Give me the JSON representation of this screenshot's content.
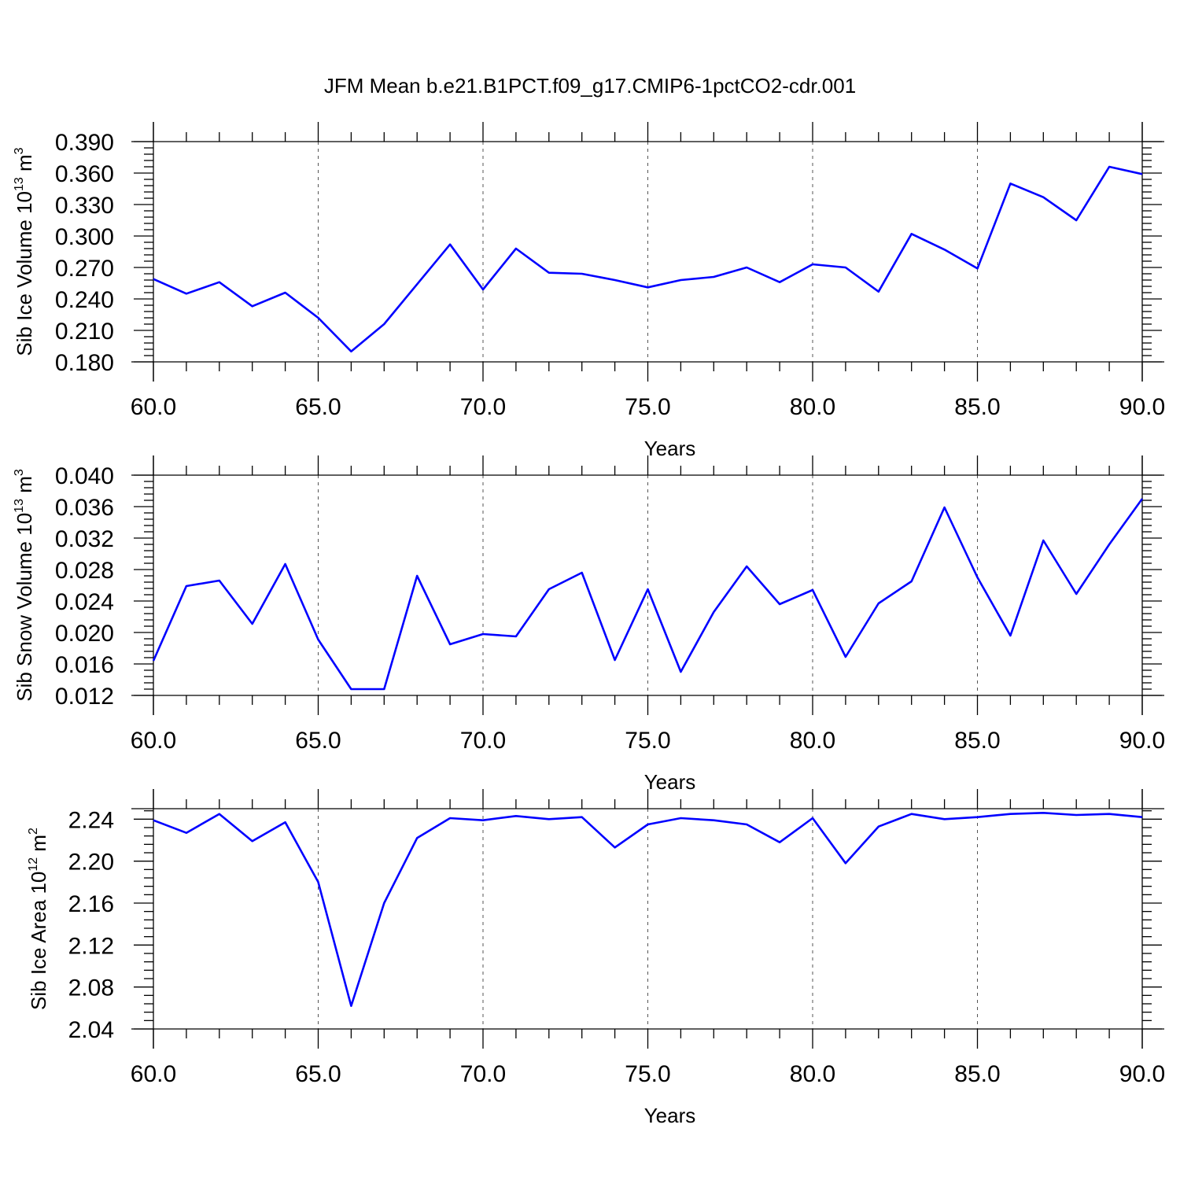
{
  "figure_title": "JFM Mean b.e21.B1PCT.f09_g17.CMIP6-1pctCO2-cdr.001",
  "colors": {
    "series": "#0000ff",
    "axis": "#000000",
    "grid": "#555555"
  },
  "chart_data": [
    {
      "type": "line",
      "xlabel": "Years",
      "ylabel": {
        "text": "Sib Ice Volume 10",
        "exponent": "13",
        "unit": " m",
        "unit_exponent": "3"
      },
      "xlim": [
        60,
        90
      ],
      "ylim": [
        0.18,
        0.39
      ],
      "x_tick_labels": [
        "60.0",
        "65.0",
        "70.0",
        "75.0",
        "80.0",
        "85.0",
        "90.0"
      ],
      "y_tick_labels": [
        "0.180",
        "0.210",
        "0.240",
        "0.270",
        "0.300",
        "0.330",
        "0.360",
        "0.390"
      ],
      "grid": "vertical dashed at major x ticks",
      "x": [
        60,
        61,
        62,
        63,
        64,
        65,
        66,
        67,
        68,
        69,
        70,
        71,
        72,
        73,
        74,
        75,
        76,
        77,
        78,
        79,
        80,
        81,
        82,
        83,
        84,
        85,
        86,
        87,
        88,
        89,
        90
      ],
      "values": [
        0.259,
        0.245,
        0.256,
        0.233,
        0.246,
        0.222,
        0.19,
        0.216,
        0.254,
        0.292,
        0.249,
        0.288,
        0.265,
        0.264,
        0.258,
        0.251,
        0.258,
        0.261,
        0.27,
        0.256,
        0.273,
        0.27,
        0.247,
        0.302,
        0.287,
        0.269,
        0.35,
        0.337,
        0.315,
        0.366,
        0.359
      ]
    },
    {
      "type": "line",
      "xlabel": "Years",
      "ylabel": {
        "text": "Sib Snow Volume 10",
        "exponent": "13",
        "unit": " m",
        "unit_exponent": "3"
      },
      "xlim": [
        60,
        90
      ],
      "ylim": [
        0.012,
        0.04
      ],
      "x_tick_labels": [
        "60.0",
        "65.0",
        "70.0",
        "75.0",
        "80.0",
        "85.0",
        "90.0"
      ],
      "y_tick_labels": [
        "0.012",
        "0.016",
        "0.020",
        "0.024",
        "0.028",
        "0.032",
        "0.036",
        "0.040"
      ],
      "grid": "vertical dashed at major x ticks",
      "x": [
        60,
        61,
        62,
        63,
        64,
        65,
        66,
        67,
        68,
        69,
        70,
        71,
        72,
        73,
        74,
        75,
        76,
        77,
        78,
        79,
        80,
        81,
        82,
        83,
        84,
        85,
        86,
        87,
        88,
        89,
        90
      ],
      "values": [
        0.0164,
        0.0259,
        0.0266,
        0.0211,
        0.0287,
        0.0191,
        0.0128,
        0.0128,
        0.0272,
        0.0185,
        0.0198,
        0.0195,
        0.0255,
        0.0276,
        0.0165,
        0.0255,
        0.015,
        0.0226,
        0.0284,
        0.0236,
        0.0254,
        0.0169,
        0.0237,
        0.0265,
        0.0359,
        0.027,
        0.0196,
        0.0317,
        0.0249,
        0.0312,
        0.037
      ]
    },
    {
      "type": "line",
      "xlabel": "Years",
      "ylabel": {
        "text": "Sib Ice Area 10",
        "exponent": "12",
        "unit": " m",
        "unit_exponent": "2"
      },
      "xlim": [
        60,
        90
      ],
      "ylim": [
        2.04,
        2.25
      ],
      "x_tick_labels": [
        "60.0",
        "65.0",
        "70.0",
        "75.0",
        "80.0",
        "85.0",
        "90.0"
      ],
      "y_tick_labels": [
        "2.04",
        "2.08",
        "2.12",
        "2.16",
        "2.20",
        "2.24"
      ],
      "grid": "vertical dashed at major x ticks",
      "x": [
        60,
        61,
        62,
        63,
        64,
        65,
        66,
        67,
        68,
        69,
        70,
        71,
        72,
        73,
        74,
        75,
        76,
        77,
        78,
        79,
        80,
        81,
        82,
        83,
        84,
        85,
        86,
        87,
        88,
        89,
        90
      ],
      "values": [
        2.239,
        2.227,
        2.245,
        2.219,
        2.237,
        2.18,
        2.062,
        2.16,
        2.222,
        2.241,
        2.239,
        2.243,
        2.24,
        2.242,
        2.213,
        2.235,
        2.241,
        2.239,
        2.235,
        2.218,
        2.241,
        2.198,
        2.233,
        2.245,
        2.24,
        2.242,
        2.245,
        2.246,
        2.244,
        2.245,
        2.242
      ]
    }
  ]
}
